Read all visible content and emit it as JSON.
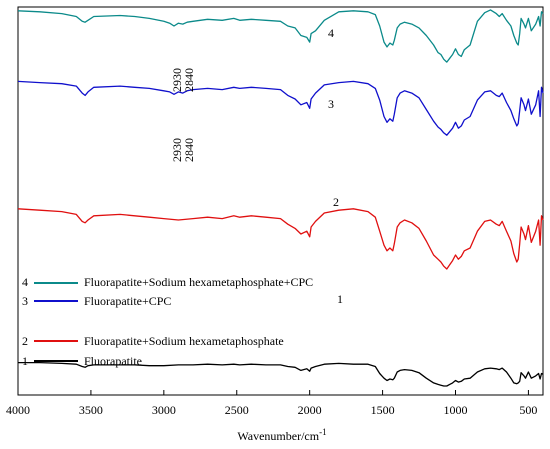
{
  "chart_data": {
    "type": "line",
    "xlabel_base": "Wavenumber/cm",
    "xlabel_sup": "-1",
    "xlim": [
      4000,
      400
    ],
    "xticks": [
      "4000",
      "3500",
      "3000",
      "2500",
      "2000",
      "1500",
      "1000",
      "500"
    ],
    "xtick_values": [
      4000,
      3500,
      3000,
      2500,
      2000,
      1500,
      1000,
      500
    ],
    "grid": false,
    "legend": [
      {
        "number": "4",
        "text": "Fluorapatite+Sodium hexametaphosphate+CPC",
        "color": "#0b8a8a"
      },
      {
        "number": "3",
        "text": "Fluorapatite+CPC",
        "color": "#1010cc"
      },
      {
        "number": "2",
        "text": "Fluorapatite+Sodium hexametaphosphate",
        "color": "#e01010"
      },
      {
        "number": "1",
        "text": "Fluorapatite",
        "color": "#000000"
      }
    ],
    "annotations": [
      {
        "text": "2930",
        "series": "4"
      },
      {
        "text": "2840",
        "series": "4"
      },
      {
        "text": "2930",
        "series": "3"
      },
      {
        "text": "2840",
        "series": "3"
      }
    ],
    "series": [
      {
        "name": "4",
        "color": "#0b8a8a",
        "x": [
          4000,
          3850,
          3700,
          3600,
          3560,
          3540,
          3520,
          3480,
          3300,
          3200,
          3100,
          3000,
          2960,
          2930,
          2900,
          2870,
          2840,
          2800,
          2700,
          2600,
          2520,
          2480,
          2400,
          2300,
          2200,
          2150,
          2100,
          2060,
          2020,
          2000,
          1990,
          1960,
          1900,
          1800,
          1700,
          1600,
          1550,
          1520,
          1490,
          1470,
          1450,
          1430,
          1420,
          1400,
          1380,
          1350,
          1300,
          1250,
          1200,
          1150,
          1120,
          1100,
          1080,
          1060,
          1040,
          1020,
          1000,
          980,
          960,
          940,
          900,
          850,
          800,
          760,
          720,
          700,
          680,
          650,
          620,
          600,
          580,
          570,
          560,
          550,
          530,
          520,
          500,
          480,
          450,
          430,
          420,
          410,
          400
        ],
        "y": [
          0.96,
          0.95,
          0.93,
          0.9,
          0.85,
          0.84,
          0.86,
          0.9,
          0.91,
          0.9,
          0.88,
          0.85,
          0.83,
          0.8,
          0.83,
          0.82,
          0.84,
          0.85,
          0.87,
          0.86,
          0.88,
          0.86,
          0.87,
          0.86,
          0.85,
          0.8,
          0.78,
          0.7,
          0.68,
          0.63,
          0.72,
          0.75,
          0.86,
          0.95,
          0.96,
          0.95,
          0.92,
          0.8,
          0.63,
          0.58,
          0.62,
          0.6,
          0.65,
          0.78,
          0.82,
          0.84,
          0.82,
          0.78,
          0.7,
          0.6,
          0.52,
          0.5,
          0.45,
          0.42,
          0.46,
          0.5,
          0.56,
          0.5,
          0.48,
          0.55,
          0.6,
          0.85,
          0.94,
          0.97,
          0.93,
          0.9,
          0.93,
          0.86,
          0.8,
          0.7,
          0.62,
          0.6,
          0.72,
          0.88,
          0.82,
          0.78,
          0.88,
          0.75,
          0.82,
          0.9,
          0.8,
          0.95,
          0.93
        ]
      },
      {
        "name": "3",
        "color": "#1010cc",
        "x": [
          4000,
          3850,
          3700,
          3600,
          3560,
          3540,
          3520,
          3480,
          3300,
          3200,
          3100,
          3000,
          2960,
          2930,
          2900,
          2870,
          2840,
          2800,
          2700,
          2600,
          2520,
          2480,
          2400,
          2300,
          2200,
          2150,
          2100,
          2060,
          2020,
          2000,
          1990,
          1960,
          1900,
          1800,
          1700,
          1600,
          1550,
          1520,
          1490,
          1470,
          1450,
          1430,
          1420,
          1400,
          1380,
          1350,
          1300,
          1250,
          1200,
          1150,
          1120,
          1100,
          1080,
          1060,
          1040,
          1020,
          1000,
          980,
          960,
          940,
          900,
          850,
          800,
          760,
          720,
          700,
          680,
          650,
          620,
          600,
          580,
          570,
          560,
          550,
          530,
          520,
          500,
          480,
          450,
          430,
          420,
          410,
          400
        ],
        "y": [
          0.8,
          0.79,
          0.78,
          0.76,
          0.7,
          0.68,
          0.71,
          0.75,
          0.76,
          0.75,
          0.74,
          0.72,
          0.71,
          0.69,
          0.71,
          0.7,
          0.72,
          0.73,
          0.74,
          0.73,
          0.75,
          0.74,
          0.75,
          0.74,
          0.73,
          0.68,
          0.65,
          0.6,
          0.62,
          0.57,
          0.65,
          0.7,
          0.77,
          0.79,
          0.8,
          0.78,
          0.74,
          0.64,
          0.5,
          0.45,
          0.48,
          0.46,
          0.52,
          0.66,
          0.7,
          0.72,
          0.7,
          0.66,
          0.56,
          0.46,
          0.41,
          0.39,
          0.36,
          0.34,
          0.37,
          0.4,
          0.45,
          0.4,
          0.42,
          0.47,
          0.5,
          0.64,
          0.71,
          0.72,
          0.68,
          0.67,
          0.7,
          0.62,
          0.55,
          0.48,
          0.42,
          0.44,
          0.55,
          0.66,
          0.6,
          0.55,
          0.65,
          0.52,
          0.6,
          0.72,
          0.5,
          0.75,
          0.7
        ]
      },
      {
        "name": "2",
        "color": "#e01010",
        "x": [
          4000,
          3850,
          3700,
          3600,
          3560,
          3540,
          3520,
          3480,
          3300,
          3200,
          3100,
          3000,
          2900,
          2800,
          2700,
          2600,
          2520,
          2480,
          2400,
          2300,
          2200,
          2150,
          2100,
          2060,
          2020,
          2000,
          1990,
          1960,
          1900,
          1800,
          1700,
          1600,
          1550,
          1520,
          1490,
          1470,
          1450,
          1430,
          1420,
          1400,
          1380,
          1350,
          1300,
          1250,
          1200,
          1150,
          1120,
          1100,
          1080,
          1060,
          1040,
          1020,
          1000,
          980,
          960,
          940,
          900,
          850,
          800,
          760,
          720,
          700,
          680,
          650,
          620,
          600,
          580,
          570,
          560,
          550,
          530,
          520,
          500,
          480,
          450,
          430,
          420,
          410,
          400
        ],
        "y": [
          0.58,
          0.57,
          0.56,
          0.54,
          0.49,
          0.48,
          0.5,
          0.53,
          0.54,
          0.53,
          0.52,
          0.51,
          0.5,
          0.51,
          0.52,
          0.51,
          0.53,
          0.52,
          0.53,
          0.52,
          0.51,
          0.47,
          0.44,
          0.4,
          0.42,
          0.38,
          0.45,
          0.49,
          0.55,
          0.57,
          0.58,
          0.56,
          0.52,
          0.42,
          0.32,
          0.28,
          0.3,
          0.28,
          0.33,
          0.45,
          0.48,
          0.5,
          0.48,
          0.44,
          0.35,
          0.25,
          0.22,
          0.2,
          0.17,
          0.15,
          0.18,
          0.21,
          0.25,
          0.22,
          0.24,
          0.28,
          0.3,
          0.42,
          0.49,
          0.5,
          0.47,
          0.46,
          0.49,
          0.42,
          0.35,
          0.26,
          0.2,
          0.22,
          0.33,
          0.45,
          0.4,
          0.36,
          0.46,
          0.34,
          0.42,
          0.5,
          0.32,
          0.53,
          0.5
        ]
      },
      {
        "name": "1",
        "color": "#000000",
        "x": [
          4000,
          3850,
          3700,
          3600,
          3560,
          3540,
          3520,
          3480,
          3300,
          3200,
          3100,
          3000,
          2900,
          2800,
          2700,
          2600,
          2520,
          2480,
          2400,
          2300,
          2200,
          2150,
          2100,
          2060,
          2020,
          2000,
          1990,
          1960,
          1900,
          1800,
          1700,
          1600,
          1550,
          1520,
          1490,
          1470,
          1450,
          1430,
          1420,
          1400,
          1380,
          1350,
          1300,
          1250,
          1200,
          1150,
          1120,
          1100,
          1080,
          1060,
          1040,
          1020,
          1000,
          980,
          960,
          940,
          900,
          850,
          800,
          760,
          720,
          700,
          680,
          650,
          620,
          600,
          580,
          570,
          560,
          550,
          530,
          520,
          500,
          480,
          450,
          430,
          420,
          410,
          400
        ],
        "y": [
          0.3,
          0.3,
          0.29,
          0.28,
          0.25,
          0.24,
          0.26,
          0.27,
          0.27,
          0.27,
          0.26,
          0.26,
          0.27,
          0.27,
          0.28,
          0.27,
          0.28,
          0.27,
          0.28,
          0.27,
          0.27,
          0.25,
          0.24,
          0.2,
          0.22,
          0.19,
          0.23,
          0.25,
          0.28,
          0.29,
          0.28,
          0.28,
          0.25,
          0.16,
          0.1,
          0.07,
          0.09,
          0.08,
          0.1,
          0.18,
          0.2,
          0.21,
          0.2,
          0.17,
          0.1,
          0.04,
          0.02,
          0.01,
          0.0,
          0.0,
          0.02,
          0.04,
          0.07,
          0.05,
          0.06,
          0.09,
          0.1,
          0.18,
          0.22,
          0.23,
          0.22,
          0.21,
          0.23,
          0.18,
          0.1,
          0.04,
          0.03,
          0.04,
          0.06,
          0.17,
          0.13,
          0.1,
          0.18,
          0.1,
          0.13,
          0.16,
          0.09,
          0.16,
          0.15
        ]
      }
    ]
  }
}
